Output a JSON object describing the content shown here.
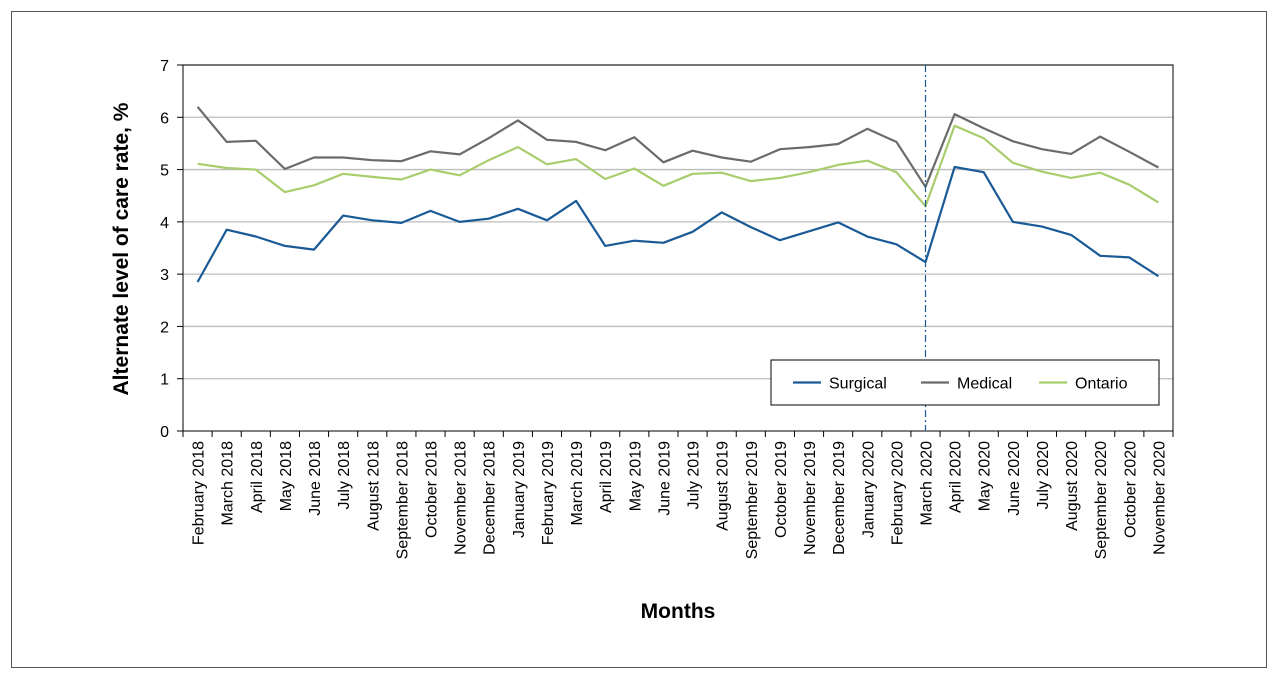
{
  "chart_data": {
    "type": "line",
    "xlabel": "Months",
    "ylabel": "Alternate level of care rate, %",
    "ylim": [
      0,
      7
    ],
    "yticks": [
      "0",
      "1",
      "2",
      "3",
      "4",
      "5",
      "6",
      "7"
    ],
    "grid": "horizontal",
    "legend_position": "bottom-right",
    "marker_line": "March 2020",
    "categories": [
      "February 2018",
      "March 2018",
      "April 2018",
      "May 2018",
      "June 2018",
      "July 2018",
      "August 2018",
      "September 2018",
      "October 2018",
      "November 2018",
      "December 2018",
      "January 2019",
      "February 2019",
      "March 2019",
      "April 2019",
      "May 2019",
      "June 2019",
      "July 2019",
      "August 2019",
      "September 2019",
      "October 2019",
      "November 2019",
      "December 2019",
      "January 2020",
      "February 2020",
      "March 2020",
      "April 2020",
      "May 2020",
      "June 2020",
      "July 2020",
      "August 2020",
      "September 2020",
      "October 2020",
      "November 2020"
    ],
    "series": [
      {
        "name": "Surgical",
        "color": "#1a5a96",
        "values": [
          2.85,
          3.85,
          3.72,
          3.54,
          3.47,
          4.12,
          4.03,
          3.98,
          4.21,
          4.0,
          4.06,
          4.25,
          4.03,
          4.4,
          3.54,
          3.64,
          3.6,
          3.81,
          4.18,
          3.9,
          3.65,
          3.82,
          3.99,
          3.72,
          3.57,
          3.23,
          5.05,
          4.95,
          4.0,
          3.91,
          3.75,
          3.35,
          3.32,
          2.96
        ]
      },
      {
        "name": "Medical",
        "color": "#6b6b6b",
        "values": [
          6.2,
          5.53,
          5.55,
          5.01,
          5.23,
          5.23,
          5.18,
          5.16,
          5.35,
          5.29,
          5.6,
          5.94,
          5.57,
          5.53,
          5.37,
          5.62,
          5.14,
          5.36,
          5.23,
          5.15,
          5.39,
          5.43,
          5.49,
          5.78,
          5.53,
          4.67,
          6.06,
          5.79,
          5.54,
          5.39,
          5.3,
          5.63,
          5.34,
          5.04
        ]
      },
      {
        "name": "Ontario",
        "color": "#a9cd6d",
        "values": [
          5.11,
          5.03,
          5.0,
          4.57,
          4.7,
          4.92,
          4.86,
          4.81,
          5.0,
          4.89,
          5.18,
          5.43,
          5.1,
          5.2,
          4.82,
          5.02,
          4.69,
          4.92,
          4.94,
          4.78,
          4.84,
          4.95,
          5.09,
          5.17,
          4.95,
          4.3,
          5.84,
          5.6,
          5.13,
          4.96,
          4.84,
          4.94,
          4.71,
          4.37
        ]
      }
    ]
  }
}
